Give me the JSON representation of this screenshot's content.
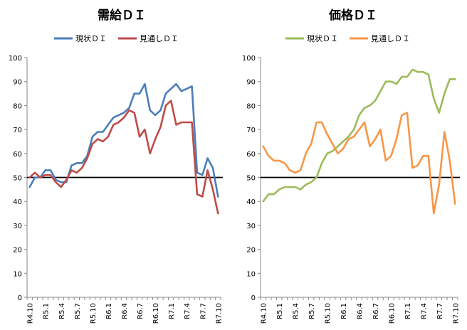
{
  "chart_data": [
    {
      "type": "line",
      "title": "需給ＤＩ",
      "xlabel": "",
      "ylabel": "",
      "ylim": [
        0,
        100
      ],
      "yticks": [
        0,
        10,
        20,
        30,
        40,
        50,
        60,
        70,
        80,
        90,
        100
      ],
      "reference_line": 50,
      "grid": false,
      "legend": "top",
      "x_tick_labels": [
        "R4.10",
        "R5.1",
        "R5.4",
        "R5.7",
        "R5.10",
        "R6.1",
        "R6.4",
        "R6.7",
        "R6.10",
        "R7.1",
        "R7.4",
        "R7.7",
        "R7.10"
      ],
      "series": [
        {
          "name": "現状ＤＩ",
          "color": "#4a7ebb",
          "values": [
            46,
            50,
            50,
            53,
            53,
            49,
            48,
            48,
            55,
            56,
            56,
            59,
            67,
            69,
            69,
            72,
            75,
            76,
            77,
            79,
            85,
            85,
            89,
            78,
            76,
            78,
            85,
            87,
            89,
            86,
            87,
            88,
            52,
            51,
            58,
            54,
            42
          ]
        },
        {
          "name": "見通しＤＩ",
          "color": "#be4b48",
          "values": [
            50,
            52,
            50,
            51,
            51,
            48,
            46,
            49,
            53,
            52,
            54,
            58,
            64,
            66,
            65,
            67,
            72,
            73,
            75,
            78,
            77,
            67,
            70,
            60,
            66,
            71,
            80,
            82,
            72,
            73,
            73,
            73,
            43,
            42,
            53,
            45,
            35
          ]
        }
      ]
    },
    {
      "type": "line",
      "title": "価格ＤＩ",
      "xlabel": "",
      "ylabel": "",
      "ylim": [
        0,
        100
      ],
      "yticks": [
        0,
        10,
        20,
        30,
        40,
        50,
        60,
        70,
        80,
        90,
        100
      ],
      "reference_line": 50,
      "grid": false,
      "legend": "top",
      "x_tick_labels": [
        "R4.10",
        "R5.1",
        "R5.4",
        "R5.7",
        "R5.10",
        "R6.1",
        "R6.4",
        "R6.7",
        "R6.10",
        "R7.1",
        "R7.4",
        "R7.7",
        "R7.10"
      ],
      "series": [
        {
          "name": "現状ＤＩ",
          "color": "#9bbb59",
          "values": [
            40,
            43,
            43,
            45,
            46,
            46,
            46,
            45,
            47,
            48,
            50,
            56,
            60,
            61,
            63,
            65,
            67,
            70,
            76,
            79,
            80,
            82,
            86,
            90,
            90,
            89,
            92,
            92,
            95,
            94,
            94,
            93,
            83,
            77,
            85,
            91,
            91
          ]
        },
        {
          "name": "見通しＤＩ",
          "color": "#f79646",
          "values": [
            63,
            59,
            57,
            57,
            56,
            53,
            52,
            53,
            60,
            64,
            73,
            73,
            68,
            64,
            60,
            62,
            66,
            67,
            70,
            73,
            63,
            66,
            70,
            57,
            59,
            66,
            76,
            77,
            54,
            55,
            59,
            59,
            35,
            47,
            69,
            57,
            39
          ]
        }
      ]
    }
  ]
}
